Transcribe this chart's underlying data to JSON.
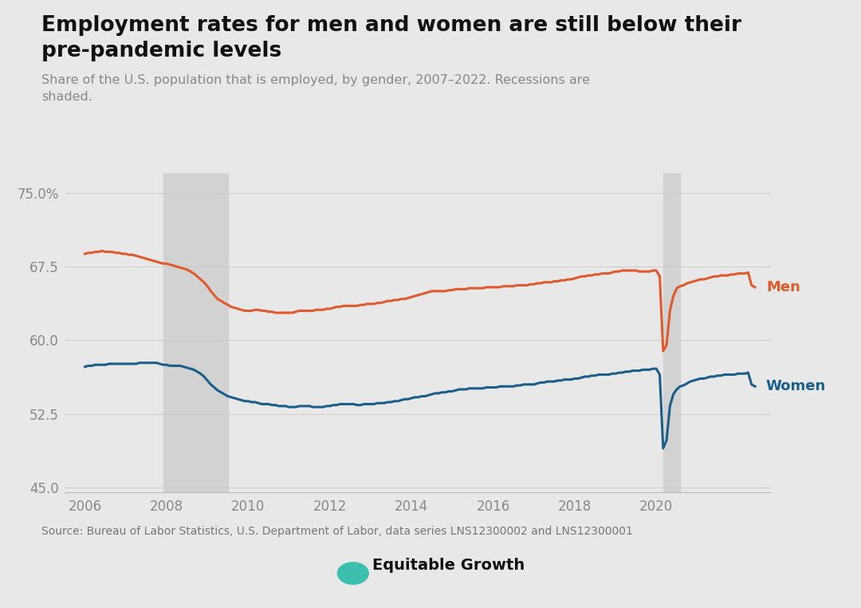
{
  "title_line1": "Employment rates for men and women are still below their",
  "title_line2": "pre-pandemic levels",
  "subtitle": "Share of the U.S. population that is employed, by gender, 2007–2022. Recessions are\nshaded.",
  "source": "Source: Bureau of Labor Statistics, U.S. Department of Labor, data series LNS12300002 and LNS12300001",
  "background_color": "#e8e8e8",
  "recession_color": "#d2d2d2",
  "recessions": [
    {
      "start": 2007.917,
      "end": 2009.5
    },
    {
      "start": 2020.167,
      "end": 2020.583
    }
  ],
  "men_color": "#e05a2b",
  "women_color": "#1a5e8a",
  "ylim": [
    44.5,
    77.0
  ],
  "yticks": [
    45.0,
    52.5,
    60.0,
    67.5,
    75.0
  ],
  "ytick_labels": [
    "45.0",
    "52.5",
    "60.0",
    "67.5",
    "75.0%"
  ],
  "xlim": [
    2005.5,
    2022.8
  ],
  "xticks": [
    2006,
    2008,
    2010,
    2012,
    2014,
    2016,
    2018,
    2020
  ],
  "men_data": {
    "years": [
      2006.0,
      2006.083,
      2006.167,
      2006.25,
      2006.333,
      2006.417,
      2006.5,
      2006.583,
      2006.667,
      2006.75,
      2006.833,
      2006.917,
      2007.0,
      2007.083,
      2007.167,
      2007.25,
      2007.333,
      2007.417,
      2007.5,
      2007.583,
      2007.667,
      2007.75,
      2007.833,
      2007.917,
      2008.0,
      2008.083,
      2008.167,
      2008.25,
      2008.333,
      2008.417,
      2008.5,
      2008.583,
      2008.667,
      2008.75,
      2008.833,
      2008.917,
      2009.0,
      2009.083,
      2009.167,
      2009.25,
      2009.333,
      2009.417,
      2009.5,
      2009.583,
      2009.667,
      2009.75,
      2009.833,
      2009.917,
      2010.0,
      2010.083,
      2010.167,
      2010.25,
      2010.333,
      2010.417,
      2010.5,
      2010.583,
      2010.667,
      2010.75,
      2010.833,
      2010.917,
      2011.0,
      2011.083,
      2011.167,
      2011.25,
      2011.333,
      2011.417,
      2011.5,
      2011.583,
      2011.667,
      2011.75,
      2011.833,
      2011.917,
      2012.0,
      2012.083,
      2012.167,
      2012.25,
      2012.333,
      2012.417,
      2012.5,
      2012.583,
      2012.667,
      2012.75,
      2012.833,
      2012.917,
      2013.0,
      2013.083,
      2013.167,
      2013.25,
      2013.333,
      2013.417,
      2013.5,
      2013.583,
      2013.667,
      2013.75,
      2013.833,
      2013.917,
      2014.0,
      2014.083,
      2014.167,
      2014.25,
      2014.333,
      2014.417,
      2014.5,
      2014.583,
      2014.667,
      2014.75,
      2014.833,
      2014.917,
      2015.0,
      2015.083,
      2015.167,
      2015.25,
      2015.333,
      2015.417,
      2015.5,
      2015.583,
      2015.667,
      2015.75,
      2015.833,
      2015.917,
      2016.0,
      2016.083,
      2016.167,
      2016.25,
      2016.333,
      2016.417,
      2016.5,
      2016.583,
      2016.667,
      2016.75,
      2016.833,
      2016.917,
      2017.0,
      2017.083,
      2017.167,
      2017.25,
      2017.333,
      2017.417,
      2017.5,
      2017.583,
      2017.667,
      2017.75,
      2017.833,
      2017.917,
      2018.0,
      2018.083,
      2018.167,
      2018.25,
      2018.333,
      2018.417,
      2018.5,
      2018.583,
      2018.667,
      2018.75,
      2018.833,
      2018.917,
      2019.0,
      2019.083,
      2019.167,
      2019.25,
      2019.333,
      2019.417,
      2019.5,
      2019.583,
      2019.667,
      2019.75,
      2019.833,
      2019.917,
      2020.0,
      2020.083,
      2020.167,
      2020.25,
      2020.333,
      2020.417,
      2020.5,
      2020.583,
      2020.667,
      2020.75,
      2020.833,
      2020.917,
      2021.0,
      2021.083,
      2021.167,
      2021.25,
      2021.333,
      2021.417,
      2021.5,
      2021.583,
      2021.667,
      2021.75,
      2021.833,
      2021.917,
      2022.0,
      2022.083,
      2022.167,
      2022.25,
      2022.333,
      2022.417
    ],
    "values": [
      68.8,
      68.9,
      68.9,
      69.0,
      69.0,
      69.1,
      69.0,
      69.0,
      69.0,
      68.9,
      68.9,
      68.8,
      68.8,
      68.7,
      68.7,
      68.6,
      68.5,
      68.4,
      68.3,
      68.2,
      68.1,
      68.0,
      67.9,
      67.8,
      67.8,
      67.7,
      67.6,
      67.5,
      67.4,
      67.3,
      67.2,
      67.0,
      66.8,
      66.5,
      66.2,
      65.9,
      65.5,
      65.0,
      64.6,
      64.2,
      64.0,
      63.8,
      63.6,
      63.4,
      63.3,
      63.2,
      63.1,
      63.0,
      63.0,
      63.0,
      63.1,
      63.1,
      63.0,
      63.0,
      62.9,
      62.9,
      62.8,
      62.8,
      62.8,
      62.8,
      62.8,
      62.8,
      62.9,
      63.0,
      63.0,
      63.0,
      63.0,
      63.0,
      63.1,
      63.1,
      63.1,
      63.2,
      63.2,
      63.3,
      63.4,
      63.4,
      63.5,
      63.5,
      63.5,
      63.5,
      63.5,
      63.6,
      63.6,
      63.7,
      63.7,
      63.7,
      63.8,
      63.8,
      63.9,
      64.0,
      64.0,
      64.1,
      64.1,
      64.2,
      64.2,
      64.3,
      64.4,
      64.5,
      64.6,
      64.7,
      64.8,
      64.9,
      65.0,
      65.0,
      65.0,
      65.0,
      65.0,
      65.1,
      65.1,
      65.2,
      65.2,
      65.2,
      65.2,
      65.3,
      65.3,
      65.3,
      65.3,
      65.3,
      65.4,
      65.4,
      65.4,
      65.4,
      65.4,
      65.5,
      65.5,
      65.5,
      65.5,
      65.6,
      65.6,
      65.6,
      65.6,
      65.7,
      65.7,
      65.8,
      65.8,
      65.9,
      65.9,
      65.9,
      66.0,
      66.0,
      66.1,
      66.1,
      66.2,
      66.2,
      66.3,
      66.4,
      66.5,
      66.5,
      66.6,
      66.6,
      66.7,
      66.7,
      66.8,
      66.8,
      66.8,
      66.9,
      67.0,
      67.0,
      67.1,
      67.1,
      67.1,
      67.1,
      67.1,
      67.0,
      67.0,
      67.0,
      67.0,
      67.1,
      67.1,
      66.5,
      58.9,
      59.5,
      63.0,
      64.5,
      65.3,
      65.5,
      65.6,
      65.8,
      65.9,
      66.0,
      66.1,
      66.2,
      66.2,
      66.3,
      66.4,
      66.5,
      66.5,
      66.6,
      66.6,
      66.6,
      66.7,
      66.7,
      66.8,
      66.8,
      66.8,
      66.9,
      65.6,
      65.4
    ]
  },
  "women_data": {
    "years": [
      2006.0,
      2006.083,
      2006.167,
      2006.25,
      2006.333,
      2006.417,
      2006.5,
      2006.583,
      2006.667,
      2006.75,
      2006.833,
      2006.917,
      2007.0,
      2007.083,
      2007.167,
      2007.25,
      2007.333,
      2007.417,
      2007.5,
      2007.583,
      2007.667,
      2007.75,
      2007.833,
      2007.917,
      2008.0,
      2008.083,
      2008.167,
      2008.25,
      2008.333,
      2008.417,
      2008.5,
      2008.583,
      2008.667,
      2008.75,
      2008.833,
      2008.917,
      2009.0,
      2009.083,
      2009.167,
      2009.25,
      2009.333,
      2009.417,
      2009.5,
      2009.583,
      2009.667,
      2009.75,
      2009.833,
      2009.917,
      2010.0,
      2010.083,
      2010.167,
      2010.25,
      2010.333,
      2010.417,
      2010.5,
      2010.583,
      2010.667,
      2010.75,
      2010.833,
      2010.917,
      2011.0,
      2011.083,
      2011.167,
      2011.25,
      2011.333,
      2011.417,
      2011.5,
      2011.583,
      2011.667,
      2011.75,
      2011.833,
      2011.917,
      2012.0,
      2012.083,
      2012.167,
      2012.25,
      2012.333,
      2012.417,
      2012.5,
      2012.583,
      2012.667,
      2012.75,
      2012.833,
      2012.917,
      2013.0,
      2013.083,
      2013.167,
      2013.25,
      2013.333,
      2013.417,
      2013.5,
      2013.583,
      2013.667,
      2013.75,
      2013.833,
      2013.917,
      2014.0,
      2014.083,
      2014.167,
      2014.25,
      2014.333,
      2014.417,
      2014.5,
      2014.583,
      2014.667,
      2014.75,
      2014.833,
      2014.917,
      2015.0,
      2015.083,
      2015.167,
      2015.25,
      2015.333,
      2015.417,
      2015.5,
      2015.583,
      2015.667,
      2015.75,
      2015.833,
      2015.917,
      2016.0,
      2016.083,
      2016.167,
      2016.25,
      2016.333,
      2016.417,
      2016.5,
      2016.583,
      2016.667,
      2016.75,
      2016.833,
      2016.917,
      2017.0,
      2017.083,
      2017.167,
      2017.25,
      2017.333,
      2017.417,
      2017.5,
      2017.583,
      2017.667,
      2017.75,
      2017.833,
      2017.917,
      2018.0,
      2018.083,
      2018.167,
      2018.25,
      2018.333,
      2018.417,
      2018.5,
      2018.583,
      2018.667,
      2018.75,
      2018.833,
      2018.917,
      2019.0,
      2019.083,
      2019.167,
      2019.25,
      2019.333,
      2019.417,
      2019.5,
      2019.583,
      2019.667,
      2019.75,
      2019.833,
      2019.917,
      2020.0,
      2020.083,
      2020.167,
      2020.25,
      2020.333,
      2020.417,
      2020.5,
      2020.583,
      2020.667,
      2020.75,
      2020.833,
      2020.917,
      2021.0,
      2021.083,
      2021.167,
      2021.25,
      2021.333,
      2021.417,
      2021.5,
      2021.583,
      2021.667,
      2021.75,
      2021.833,
      2021.917,
      2022.0,
      2022.083,
      2022.167,
      2022.25,
      2022.333,
      2022.417
    ],
    "values": [
      57.3,
      57.4,
      57.4,
      57.5,
      57.5,
      57.5,
      57.5,
      57.6,
      57.6,
      57.6,
      57.6,
      57.6,
      57.6,
      57.6,
      57.6,
      57.6,
      57.7,
      57.7,
      57.7,
      57.7,
      57.7,
      57.7,
      57.6,
      57.5,
      57.5,
      57.4,
      57.4,
      57.4,
      57.4,
      57.3,
      57.2,
      57.1,
      57.0,
      56.8,
      56.6,
      56.3,
      55.9,
      55.5,
      55.2,
      54.9,
      54.7,
      54.5,
      54.3,
      54.2,
      54.1,
      54.0,
      53.9,
      53.8,
      53.8,
      53.7,
      53.7,
      53.6,
      53.5,
      53.5,
      53.5,
      53.4,
      53.4,
      53.3,
      53.3,
      53.3,
      53.2,
      53.2,
      53.2,
      53.3,
      53.3,
      53.3,
      53.3,
      53.2,
      53.2,
      53.2,
      53.2,
      53.3,
      53.3,
      53.4,
      53.4,
      53.5,
      53.5,
      53.5,
      53.5,
      53.5,
      53.4,
      53.4,
      53.5,
      53.5,
      53.5,
      53.5,
      53.6,
      53.6,
      53.6,
      53.7,
      53.7,
      53.8,
      53.8,
      53.9,
      54.0,
      54.0,
      54.1,
      54.2,
      54.2,
      54.3,
      54.3,
      54.4,
      54.5,
      54.6,
      54.6,
      54.7,
      54.7,
      54.8,
      54.8,
      54.9,
      55.0,
      55.0,
      55.0,
      55.1,
      55.1,
      55.1,
      55.1,
      55.1,
      55.2,
      55.2,
      55.2,
      55.2,
      55.3,
      55.3,
      55.3,
      55.3,
      55.3,
      55.4,
      55.4,
      55.5,
      55.5,
      55.5,
      55.5,
      55.6,
      55.7,
      55.7,
      55.8,
      55.8,
      55.8,
      55.9,
      55.9,
      56.0,
      56.0,
      56.0,
      56.1,
      56.1,
      56.2,
      56.3,
      56.3,
      56.4,
      56.4,
      56.5,
      56.5,
      56.5,
      56.5,
      56.6,
      56.6,
      56.7,
      56.7,
      56.8,
      56.8,
      56.9,
      56.9,
      56.9,
      57.0,
      57.0,
      57.0,
      57.1,
      57.1,
      56.5,
      49.0,
      49.8,
      53.3,
      54.5,
      55.0,
      55.3,
      55.4,
      55.6,
      55.8,
      55.9,
      56.0,
      56.1,
      56.1,
      56.2,
      56.3,
      56.3,
      56.4,
      56.4,
      56.5,
      56.5,
      56.5,
      56.5,
      56.6,
      56.6,
      56.6,
      56.7,
      55.5,
      55.3
    ]
  }
}
